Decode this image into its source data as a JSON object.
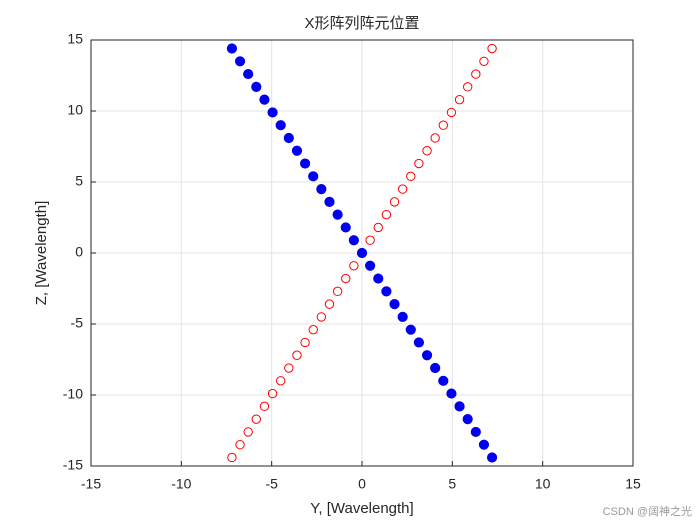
{
  "chart_data": {
    "type": "scatter",
    "title": "X形阵列阵元位置",
    "xlabel": "Y, [Wavelength]",
    "ylabel": "Z, [Wavelength]",
    "xlim": [
      -15,
      15
    ],
    "ylim": [
      -15,
      15
    ],
    "xticks": [
      -15,
      -10,
      -5,
      0,
      5,
      10,
      15
    ],
    "yticks": [
      -15,
      -10,
      -5,
      0,
      5,
      10,
      15
    ],
    "grid": true,
    "series": [
      {
        "color": "#ff0000",
        "marker": "open",
        "x": [
          -7.2,
          -6.75,
          -6.3,
          -5.85,
          -5.4,
          -4.95,
          -4.5,
          -4.05,
          -3.6,
          -3.15,
          -2.7,
          -2.25,
          -1.8,
          -1.35,
          -0.9,
          -0.45,
          0,
          0.45,
          0.9,
          1.35,
          1.8,
          2.25,
          2.7,
          3.15,
          3.6,
          4.05,
          4.5,
          4.95,
          5.4,
          5.85,
          6.3,
          6.75,
          7.2
        ],
        "values": [
          -14.4,
          -13.5,
          -12.6,
          -11.7,
          -10.8,
          -9.9,
          -9,
          -8.1,
          -7.2,
          -6.3,
          -5.4,
          -4.5,
          -3.6,
          -2.7,
          -1.8,
          -0.9,
          0,
          0.9,
          1.8,
          2.7,
          3.6,
          4.5,
          5.4,
          6.3,
          7.2,
          8.1,
          9,
          9.9,
          10.8,
          11.7,
          12.6,
          13.5,
          14.4
        ]
      },
      {
        "color": "#0000ee",
        "marker": "filled",
        "x": [
          -7.2,
          -6.75,
          -6.3,
          -5.85,
          -5.4,
          -4.95,
          -4.5,
          -4.05,
          -3.6,
          -3.15,
          -2.7,
          -2.25,
          -1.8,
          -1.35,
          -0.9,
          -0.45,
          0,
          0.45,
          0.9,
          1.35,
          1.8,
          2.25,
          2.7,
          3.15,
          3.6,
          4.05,
          4.5,
          4.95,
          5.4,
          5.85,
          6.3,
          6.75,
          7.2
        ],
        "values": [
          14.4,
          13.5,
          12.6,
          11.7,
          10.8,
          9.9,
          9,
          8.1,
          7.2,
          6.3,
          5.4,
          4.5,
          3.6,
          2.7,
          1.8,
          0.9,
          0,
          -0.9,
          -1.8,
          -2.7,
          -3.6,
          -4.5,
          -5.4,
          -6.3,
          -7.2,
          -8.1,
          -9,
          -9.9,
          -10.8,
          -11.7,
          -12.6,
          -13.5,
          -14.4
        ]
      }
    ],
    "watermark": "CSDN @阔神之光"
  }
}
